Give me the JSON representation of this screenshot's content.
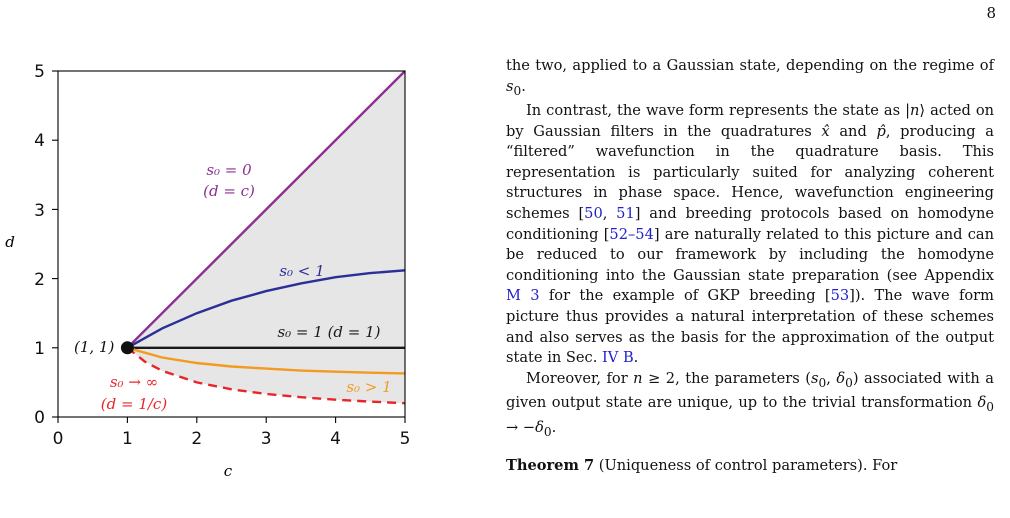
{
  "page_number": "8",
  "figure": {
    "xlabel": "c",
    "ylabel": "d",
    "x_ticks": [
      "0",
      "1",
      "2",
      "3",
      "4",
      "5"
    ],
    "y_ticks": [
      "0",
      "1",
      "2",
      "3",
      "4",
      "5"
    ],
    "point_label": "(1, 1)",
    "annotations": {
      "s0_zero": "s₀ = 0",
      "s0_zero_sub": "(d = c)",
      "s0_lt1": "s₀ < 1",
      "s0_eq1": "s₀ = 1 (d = 1)",
      "s0_gt1": "s₀ > 1",
      "s0_inf": "s₀ → ∞",
      "s0_inf_sub": "(d = 1/c)"
    },
    "colors": {
      "s0_zero": "#8b2f93",
      "s0_lt1": "#2b2f96",
      "s0_eq1": "#1a1a1a",
      "s0_gt1": "#f39a1f",
      "s0_inf": "#e8262a",
      "fill": "#e6e6e6"
    }
  },
  "chart_data": {
    "type": "line",
    "xlabel": "c",
    "ylabel": "d",
    "xlim": [
      0,
      5
    ],
    "ylim": [
      0,
      5
    ],
    "grid": false,
    "point": {
      "x": 1,
      "y": 1
    },
    "series": [
      {
        "name": "s₀ = 0 (d = c)",
        "x": [
          1,
          2,
          3,
          4,
          5
        ],
        "y": [
          1,
          2,
          3,
          4,
          5
        ],
        "style": "solid"
      },
      {
        "name": "s₀ < 1",
        "x": [
          1,
          1.5,
          2,
          2.5,
          3,
          3.5,
          4,
          4.5,
          5
        ],
        "y": [
          1,
          1.28,
          1.5,
          1.68,
          1.82,
          1.93,
          2.02,
          2.08,
          2.12
        ],
        "style": "solid"
      },
      {
        "name": "s₀ = 1 (d = 1)",
        "x": [
          1,
          5
        ],
        "y": [
          1,
          1
        ],
        "style": "solid"
      },
      {
        "name": "s₀ > 1",
        "x": [
          1,
          1.5,
          2,
          2.5,
          3,
          3.5,
          4,
          4.5,
          5
        ],
        "y": [
          1,
          0.86,
          0.78,
          0.73,
          0.7,
          0.67,
          0.655,
          0.64,
          0.63
        ],
        "style": "solid"
      },
      {
        "name": "s₀ → ∞ (d = 1/c)",
        "x": [
          1,
          1.25,
          1.5,
          2,
          2.5,
          3,
          3.5,
          4,
          4.5,
          5
        ],
        "y": [
          1,
          0.8,
          0.667,
          0.5,
          0.4,
          0.333,
          0.286,
          0.25,
          0.222,
          0.2
        ],
        "style": "dashed"
      }
    ]
  },
  "text": {
    "p1": {
      "a": "the two, applied to a Gaussian state, depending on the regime of ",
      "b": "s",
      "c": "0",
      "d": "."
    },
    "p2": {
      "a": "In contrast, the wave form represents the state as |",
      "n": "n",
      "b": "⟩ acted on by Gaussian filters in the quadratures ",
      "x": "x̂",
      "c": " and ",
      "p": "p̂",
      "d": ", producing a “filtered” wavefunction in the quadrature basis. This representation is particularly suited for analyzing coherent structures in phase space. Hence, wavefunction engineering schemes [",
      "r1": "50",
      "e": ", ",
      "r2": "51",
      "f": "] and breeding protocols based on homodyne conditioning [",
      "r3": "52–54",
      "g": "] are naturally related to this picture and can be reduced to our framework by including the homodyne conditioning into the Gaussian state preparation (see Appendix ",
      "r4": "M 3",
      "h": " for the example of GKP breeding [",
      "r5": "53",
      "i": "]). The wave form picture thus provides a natural interpretation of these schemes and also serves as the basis for the approximation of the output state in Sec. ",
      "r6": "IV B",
      "j": "."
    },
    "p3": {
      "a": "Moreover, for ",
      "n": "n",
      "b": " ≥ 2, the parameters (",
      "s": "s",
      "s_sub": "0",
      "c": ", ",
      "dl": "δ",
      "dl_sub": "0",
      "d": ") associated with a given output state are unique, up to the trivial transformation ",
      "dl2": "δ",
      "dl2_sub": "0",
      "e": " → −",
      "dl3": "δ",
      "dl3_sub": "0",
      "f": "."
    },
    "p4": {
      "bold": "Theorem 7",
      "rest": " (Uniqueness of control parameters). For"
    }
  }
}
